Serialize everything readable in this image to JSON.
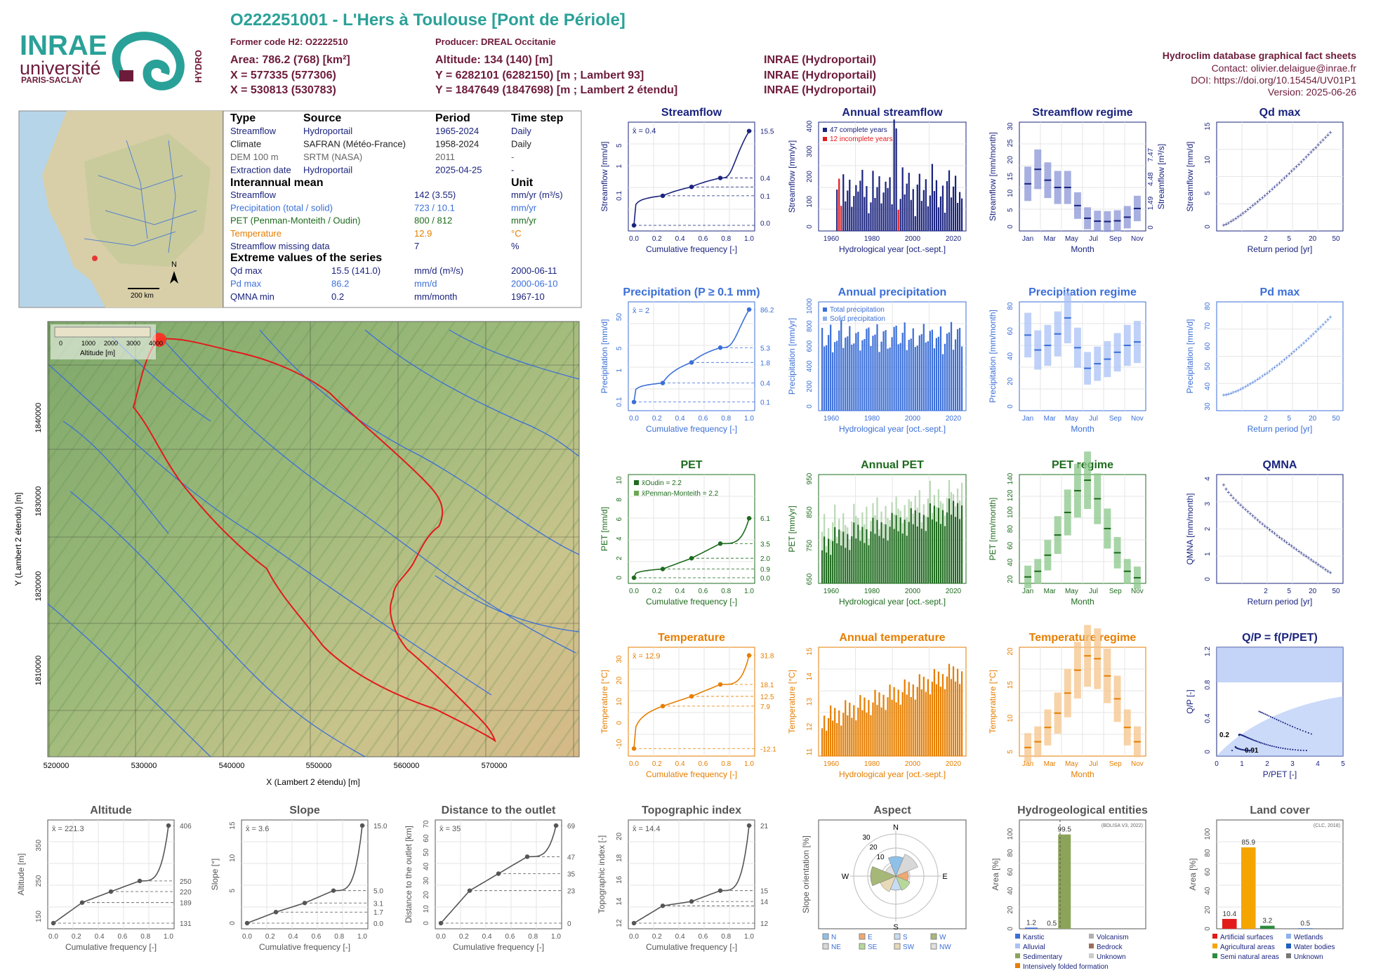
{
  "header": {
    "title": "O222251001 - L'Hers à Toulouse [Pont de Périole]",
    "former_code": "Former code H2: O2222510",
    "producer": "Producer: DREAL Occitanie",
    "area": "Area: 786.2 (768) [km²]",
    "altitude": "Altitude: 134 (140) [m]",
    "x93": "X = 577335 (577306)",
    "y93": "Y = 6282101 (6282150) [m ; Lambert 93]",
    "x2": "X = 530813 (530783)",
    "y2": "Y = 1847649 (1847698) [m ; Lambert 2 étendu]",
    "src1": "INRAE (Hydroportail)",
    "src2": "INRAE (Hydroportail)",
    "src3": "INRAE (Hydroportail)",
    "db": "Hydroclim database graphical fact sheets",
    "contact": "Contact: olivier.delaigue@inrae.fr",
    "doi": "DOI: https://doi.org/10.15454/UV01P1",
    "version": "Version: 2025-06-26"
  },
  "logos": {
    "inrae": "INRAE",
    "universite": "université",
    "paris_saclay": "PARIS-SACLAY",
    "hydro": "HYDRO"
  },
  "minimap": {
    "scale": "200 km",
    "north": "N"
  },
  "info_table": {
    "headers": [
      "Type",
      "Source",
      "Period",
      "Time step"
    ],
    "rows": [
      {
        "t": "Streamflow",
        "s": "Hydroportail",
        "p": "1965-2024",
        "ts": "Daily",
        "color": "#1a237e"
      },
      {
        "t": "Climate",
        "s": "SAFRAN (Météo-France)",
        "p": "1958-2024",
        "ts": "Daily",
        "color": "#222222"
      },
      {
        "t": "DEM 100 m",
        "s": "SRTM (NASA)",
        "p": "2011",
        "ts": "-",
        "color": "#666666"
      },
      {
        "t": "Extraction date",
        "s": "Hydroportail",
        "p": "2025-04-25",
        "ts": "-",
        "color": "#1a237e"
      }
    ],
    "mean_title": "Interannual mean",
    "unit_title": "Unit",
    "means": [
      {
        "k": "Streamflow",
        "v": "142 (3.55)",
        "u": "mm/yr (m³/s)",
        "color": "#1a237e"
      },
      {
        "k": "Precipitation (total / solid)",
        "v": "723 / 10.1",
        "u": "mm/yr",
        "color": "#3b6fd8"
      },
      {
        "k": "PET (Penman-Monteith / Oudin)",
        "v": "800 / 812",
        "u": "mm/yr",
        "color": "#1e6b1e"
      },
      {
        "k": "Temperature",
        "v": "12.9",
        "u": "°C",
        "color": "#e67e00"
      },
      {
        "k": "Streamflow missing data",
        "v": "7",
        "u": "%",
        "color": "#1a237e"
      }
    ],
    "extreme_title": "Extreme values of the series",
    "extremes": [
      {
        "k": "Qd max",
        "v": "15.5 (141.0)",
        "u": "mm/d (m³/s)",
        "d": "2000-06-11",
        "color": "#1a237e"
      },
      {
        "k": "Pd max",
        "v": "86.2",
        "u": "mm/d",
        "d": "2000-06-10",
        "color": "#3b6fd8"
      },
      {
        "k": "QMNA min",
        "v": "0.2",
        "u": "mm/month",
        "d": "1967-10",
        "color": "#1a237e"
      }
    ]
  },
  "map": {
    "legend_title": "Altitude [m]",
    "legend_ticks": [
      "0",
      "1000",
      "2000",
      "3000",
      "4000"
    ],
    "xlabel": "X (Lambert 2 étendu) [m]",
    "ylabel": "Y (Lambert 2 étendu) [m]",
    "xticks": [
      "520000",
      "530000",
      "540000",
      "550000",
      "560000",
      "570000"
    ],
    "yticks": [
      "1840000",
      "1830000",
      "1820000",
      "1810000"
    ]
  },
  "colors": {
    "navy": "#1a237e",
    "blue": "#3b6fd8",
    "green": "#1e6b1e",
    "orange": "#e67e00",
    "grey": "#555555",
    "teal": "#2aa198",
    "maroon": "#6d1b3a"
  },
  "chart_data": [
    {
      "id": "streamflow_fdc",
      "type": "line",
      "title": "Streamflow",
      "xlabel": "Cumulative frequency [-]",
      "ylabel": "Streamflow [mm/d]",
      "mean_label": "x̄ = 0.4",
      "right_ticks": [
        "15.5",
        "0.4",
        "0.1",
        "0.0"
      ],
      "x": [
        0,
        0.25,
        0.5,
        0.75,
        1
      ],
      "y": [
        0.0,
        0.1,
        0.2,
        0.4,
        15.5
      ],
      "scale": "log"
    },
    {
      "id": "annual_streamflow",
      "type": "bar",
      "title": "Annual streamflow",
      "xlabel": "Hydrological year [oct.-sept.]",
      "ylabel": "Streamflow [mm/yr]",
      "legend": [
        "47 complete years",
        "12 incomplete years"
      ],
      "ylim": [
        0,
        430
      ],
      "yticks": [
        "0",
        "100",
        "200",
        "300",
        "400"
      ],
      "xticks": [
        "1960",
        "1980",
        "2000",
        "2020"
      ]
    },
    {
      "id": "streamflow_regime",
      "type": "bar",
      "title": "Streamflow regime",
      "xlabel": "Month",
      "ylabel": "Streamflow [mm/month]",
      "ylabel_right": "Streamflow [m³/s]",
      "categories": [
        "Jan",
        "Feb",
        "Mar",
        "Apr",
        "May",
        "Jun",
        "Jul",
        "Aug",
        "Sep",
        "Oct",
        "Nov",
        "Dec"
      ],
      "values": [
        13,
        17,
        14,
        12,
        12,
        7,
        3.5,
        2.7,
        2.6,
        2.8,
        3.8,
        6.2
      ],
      "ylim": [
        0,
        30
      ],
      "yticks": [
        "0",
        "5",
        "10",
        "15",
        "20",
        "25",
        "30"
      ],
      "right_ticks": [
        "0",
        "1.49",
        "4.48",
        "7.47"
      ],
      "xticks": [
        "Jan",
        "Mar",
        "May",
        "Jul",
        "Sep",
        "Nov"
      ]
    },
    {
      "id": "qd_max",
      "type": "scatter",
      "title": "Qd max",
      "xlabel": "Return period [yr]",
      "ylabel": "Streamflow [mm/d]",
      "yticks": [
        "0",
        "5",
        "10",
        "15"
      ],
      "xticks": [
        "2",
        "5",
        "10",
        "20",
        "50"
      ]
    },
    {
      "id": "precip_fdc",
      "type": "line",
      "title": "Precipitation (P ≥ 0.1 mm)",
      "xlabel": "Cumulative frequency [-]",
      "ylabel": "Precipitation [mm/d]",
      "mean_label": "x̄ = 2",
      "right_ticks": [
        "86.2",
        "5.3",
        "1.8",
        "0.4",
        "0.1"
      ],
      "x": [
        0,
        0.25,
        0.5,
        0.75,
        1
      ],
      "y": [
        0.1,
        0.4,
        1.8,
        5.3,
        86.2
      ],
      "scale": "log"
    },
    {
      "id": "annual_precip",
      "type": "bar",
      "title": "Annual precipitation",
      "xlabel": "Hydrological year [oct.-sept.]",
      "ylabel": "Precipitation [mm/yr]",
      "legend": [
        "Total precipitation",
        "Solid precipitation"
      ],
      "ylim": [
        0,
        1050
      ],
      "yticks": [
        "0",
        "200",
        "400",
        "600",
        "800",
        "1000"
      ],
      "xticks": [
        "1960",
        "1980",
        "2000",
        "2020"
      ]
    },
    {
      "id": "precip_regime",
      "type": "bar",
      "title": "Precipitation regime",
      "xlabel": "Month",
      "ylabel": "Precipitation [mm/month]",
      "categories": [
        "Jan",
        "Feb",
        "Mar",
        "Apr",
        "May",
        "Jun",
        "Jul",
        "Aug",
        "Sep",
        "Oct",
        "Nov",
        "Dec"
      ],
      "values": [
        66,
        53,
        57,
        67,
        81,
        55,
        37,
        41,
        45,
        51,
        57,
        60
      ],
      "ylim": [
        0,
        95
      ],
      "yticks": [
        "0",
        "20",
        "40",
        "60",
        "80"
      ],
      "xticks": [
        "Jan",
        "Mar",
        "May",
        "Jul",
        "Sep",
        "Nov"
      ]
    },
    {
      "id": "pd_max",
      "type": "scatter",
      "title": "Pd max",
      "xlabel": "Return period [yr]",
      "ylabel": "Precipitation [mm/d]",
      "yticks": [
        "30",
        "40",
        "50",
        "60",
        "70",
        "80"
      ],
      "xticks": [
        "2",
        "5",
        "10",
        "20",
        "50"
      ]
    },
    {
      "id": "pet_fdc",
      "type": "line",
      "title": "PET",
      "xlabel": "Cumulative frequency [-]",
      "ylabel": "PET [mm/d]",
      "legend": [
        "x̄Oudin = 2.2",
        "x̄Penman-Monteith = 2.2"
      ],
      "right_ticks": [
        "6.1",
        "3.5",
        "2.0",
        "0.9",
        "0.0"
      ],
      "x": [
        0,
        0.25,
        0.5,
        0.75,
        1
      ],
      "y": [
        0.0,
        0.9,
        2.0,
        3.5,
        6.1
      ],
      "yticks": [
        "0",
        "2",
        "4",
        "6",
        "8",
        "10"
      ]
    },
    {
      "id": "annual_pet",
      "type": "bar",
      "title": "Annual PET",
      "xlabel": "Hydrological year [oct.-sept.]",
      "ylabel": "PET [mm/yr]",
      "ylim": [
        640,
        960
      ],
      "yticks": [
        "650",
        "750",
        "850",
        "950"
      ],
      "xticks": [
        "1960",
        "1980",
        "2000",
        "2020"
      ]
    },
    {
      "id": "pet_regime",
      "type": "bar",
      "title": "PET regime",
      "xlabel": "Month",
      "ylabel": "PET [mm/month]",
      "categories": [
        "Jan",
        "Feb",
        "Mar",
        "Apr",
        "May",
        "Jun",
        "Jul",
        "Aug",
        "Sep",
        "Oct",
        "Nov",
        "Dec"
      ],
      "values": [
        18,
        25,
        45,
        70,
        98,
        125,
        138,
        115,
        78,
        48,
        25,
        17
      ],
      "ylim": [
        10,
        145
      ],
      "yticks": [
        "20",
        "40",
        "60",
        "80",
        "100",
        "120",
        "140"
      ],
      "xticks": [
        "Jan",
        "Mar",
        "May",
        "Jul",
        "Sep",
        "Nov"
      ]
    },
    {
      "id": "qmna",
      "type": "scatter",
      "title": "QMNA",
      "xlabel": "Return period [yr]",
      "ylabel": "QMNA [mm/month]",
      "yticks": [
        "0",
        "1",
        "2",
        "3",
        "4"
      ],
      "xticks": [
        "2",
        "5",
        "10",
        "20",
        "50"
      ]
    },
    {
      "id": "temp_fdc",
      "type": "line",
      "title": "Temperature",
      "xlabel": "Cumulative frequency [-]",
      "ylabel": "Temperature [°C]",
      "mean_label": "x̄ = 12.9",
      "right_ticks": [
        "31.8",
        "18.1",
        "12.5",
        "7.9",
        "-12.1"
      ],
      "x": [
        0,
        0.25,
        0.5,
        0.75,
        1
      ],
      "y": [
        -12.1,
        7.9,
        12.5,
        18.1,
        31.8
      ],
      "yticks": [
        "-10",
        "0",
        "10",
        "20",
        "30"
      ]
    },
    {
      "id": "annual_temp",
      "type": "bar",
      "title": "Annual temperature",
      "xlabel": "Hydrological year [oct.-sept.]",
      "ylabel": "Temperature [°C]",
      "ylim": [
        11,
        15
      ],
      "yticks": [
        "11",
        "12",
        "13",
        "14",
        "15"
      ],
      "xticks": [
        "1960",
        "1980",
        "2000",
        "2020"
      ]
    },
    {
      "id": "temp_regime",
      "type": "bar",
      "title": "Temperature regime",
      "xlabel": "Month",
      "ylabel": "Temperature [°C]",
      "categories": [
        "Jan",
        "Feb",
        "Mar",
        "Apr",
        "May",
        "Jun",
        "Jul",
        "Aug",
        "Sep",
        "Oct",
        "Nov",
        "Dec"
      ],
      "values": [
        5.5,
        6.5,
        9,
        11.5,
        15,
        19,
        21.5,
        21,
        18,
        14,
        9,
        6.5
      ],
      "ylim": [
        4,
        23
      ],
      "yticks": [
        "5",
        "10",
        "15",
        "20"
      ],
      "xticks": [
        "Jan",
        "Mar",
        "May",
        "Jul",
        "Sep",
        "Nov"
      ]
    },
    {
      "id": "qp_ppet",
      "type": "scatter",
      "title": "Q/P = f(P/PET)",
      "xlabel": "P/PET [-]",
      "ylabel": "Q/P [-]",
      "annotations": [
        "0.2",
        "0.91"
      ],
      "yticks": [
        "0",
        "0.4",
        "0.8",
        "1.2"
      ],
      "xticks": [
        "0",
        "1",
        "2",
        "3",
        "4",
        "5"
      ]
    },
    {
      "id": "altitude_fdc",
      "type": "line",
      "title": "Altitude",
      "xlabel": "Cumulative frequency [-]",
      "ylabel": "Altitude [m]",
      "mean_label": "x̄ = 221.3",
      "right_ticks": [
        "406",
        "250",
        "220",
        "189",
        "131"
      ],
      "x": [
        0,
        0.25,
        0.5,
        0.75,
        1
      ],
      "y": [
        131,
        189,
        220,
        250,
        406
      ],
      "yticks": [
        "150",
        "250",
        "350"
      ]
    },
    {
      "id": "slope_fdc",
      "type": "line",
      "title": "Slope",
      "xlabel": "Cumulative frequency [-]",
      "ylabel": "Slope [°]",
      "mean_label": "x̄ = 3.6",
      "right_ticks": [
        "15.0",
        "5.0",
        "3.1",
        "1.7",
        "0.0"
      ],
      "x": [
        0,
        0.25,
        0.5,
        0.75,
        1
      ],
      "y": [
        0.0,
        1.7,
        3.1,
        5.0,
        15.0
      ],
      "yticks": [
        "0",
        "5",
        "10",
        "15"
      ]
    },
    {
      "id": "distance_fdc",
      "type": "line",
      "title": "Distance to the outlet",
      "xlabel": "Cumulative frequency [-]",
      "ylabel": "Distance to the outlet [km]",
      "mean_label": "x̄ = 35",
      "right_ticks": [
        "69",
        "47",
        "35",
        "23",
        "0"
      ],
      "x": [
        0,
        0.25,
        0.5,
        0.75,
        1
      ],
      "y": [
        0,
        23,
        35,
        47,
        69
      ],
      "yticks": [
        "0",
        "10",
        "20",
        "30",
        "40",
        "50",
        "60",
        "70"
      ]
    },
    {
      "id": "topo_fdc",
      "type": "line",
      "title": "Topographic index",
      "xlabel": "Cumulative frequency [-]",
      "ylabel": "Topographic index [-]",
      "mean_label": "x̄ = 14.4",
      "right_ticks": [
        "21",
        "15",
        "14",
        "12"
      ],
      "x": [
        0,
        0.25,
        0.5,
        0.75,
        1
      ],
      "y": [
        12,
        13.6,
        14,
        15,
        21
      ],
      "yticks": [
        "12",
        "14",
        "16",
        "18",
        "20"
      ]
    },
    {
      "id": "aspect",
      "type": "pie",
      "title": "Aspect",
      "ylabel": "Slope orientation [%]",
      "directions": [
        "N",
        "NE",
        "E",
        "SE",
        "S",
        "SW",
        "W",
        "NW"
      ],
      "rings": [
        "10",
        "20",
        "30"
      ],
      "legend": [
        "N",
        "E",
        "S",
        "W",
        "NE",
        "SE",
        "SW",
        "NW"
      ]
    },
    {
      "id": "hydrogeology",
      "type": "bar",
      "title": "Hydrogeological entities",
      "ylabel": "Area [%]",
      "note": "(BDLISA V3, 2022)",
      "categories": [
        "Karstic",
        "Alluvial",
        "Sedimentary",
        "Intensively folded formation",
        "Volcanism",
        "Bedrock",
        "Unknown"
      ],
      "values": [
        1.2,
        0.0,
        99.5,
        0.0,
        0.0,
        0.0,
        0.0
      ],
      "labels": [
        "1.2",
        "0.5",
        "99.5"
      ],
      "yticks": [
        "0",
        "20",
        "40",
        "60",
        "80",
        "100"
      ]
    },
    {
      "id": "land_cover",
      "type": "bar",
      "title": "Land cover",
      "ylabel": "Area [%]",
      "note": "(CLC, 2018)",
      "categories": [
        "Artificial surfaces",
        "Agricultural areas",
        "Semi natural areas",
        "Wetlands",
        "Water bodies",
        "Unknown"
      ],
      "values": [
        10.4,
        85.9,
        3.2,
        0.0,
        0.5,
        0.0
      ],
      "labels": [
        "10.4",
        "85.9",
        "3.2",
        "0.5"
      ],
      "yticks": [
        "0",
        "20",
        "40",
        "60",
        "80",
        "100"
      ]
    }
  ]
}
